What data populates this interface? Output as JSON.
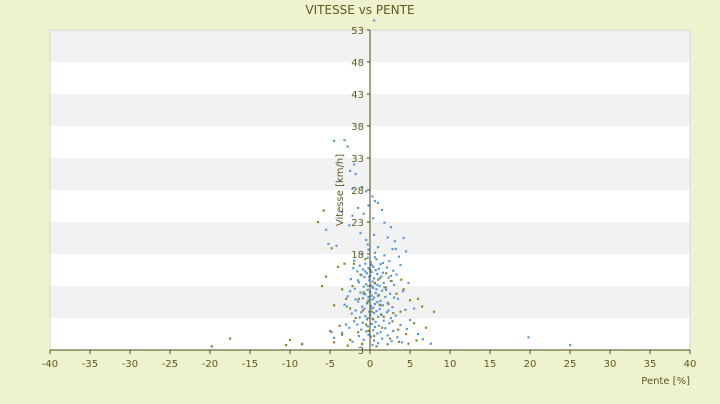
{
  "chart_data": {
    "type": "scatter",
    "title": "VITESSE vs PENTE",
    "xlabel": "Pente [%]",
    "ylabel": "Vitesse [km/h]",
    "xlim": [
      -40,
      40
    ],
    "ylim": [
      3,
      53
    ],
    "x_ticks": [
      -40,
      -35,
      -30,
      -25,
      -20,
      -15,
      -10,
      -5,
      0,
      5,
      10,
      15,
      20,
      25,
      30,
      35,
      40
    ],
    "y_ticks": [
      3,
      8,
      13,
      18,
      23,
      28,
      33,
      38,
      43,
      48,
      53
    ],
    "y_tick_labels": [
      "3",
      "",
      "",
      "18",
      "23",
      "28",
      "33",
      "38",
      "43",
      "48",
      "53"
    ],
    "grid": "horizontal-bands",
    "legend": "none",
    "colors": {
      "background": "#eef2cf",
      "plot_band_light": "#ffffff",
      "plot_band_dark": "#f2f2f2",
      "axis": "#4a4a1a",
      "text": "#5b5b1f",
      "series_1": "#5b9bd5",
      "series_2": "#8a8a2a"
    },
    "series": [
      {
        "color": "#5b9bd5",
        "points": [
          [
            -4.5,
            35.7
          ],
          [
            -3.2,
            35.8
          ],
          [
            -2.8,
            34.8
          ],
          [
            -2.5,
            31.0
          ],
          [
            -1.8,
            30.5
          ],
          [
            -3.8,
            29.5
          ],
          [
            -2.2,
            28.2
          ],
          [
            -0.5,
            27.8
          ],
          [
            0.3,
            27.0
          ],
          [
            0.6,
            26.3
          ],
          [
            -0.2,
            25.6
          ],
          [
            -1.5,
            25.2
          ],
          [
            1.5,
            24.9
          ],
          [
            -0.8,
            24.3
          ],
          [
            -2.2,
            24.0
          ],
          [
            0.4,
            23.6
          ],
          [
            1.8,
            22.9
          ],
          [
            2.6,
            22.2
          ],
          [
            -5.5,
            21.8
          ],
          [
            -1.2,
            21.3
          ],
          [
            0.5,
            21.0
          ],
          [
            2.2,
            20.6
          ],
          [
            -0.5,
            20.2
          ],
          [
            3.1,
            20.0
          ],
          [
            -5.2,
            19.6
          ],
          [
            -4.2,
            19.3
          ],
          [
            1.0,
            19.1
          ],
          [
            2.8,
            18.8
          ],
          [
            -0.2,
            18.7
          ],
          [
            4.5,
            18.4
          ],
          [
            0.6,
            18.2
          ],
          [
            -1.0,
            18.0
          ],
          [
            1.8,
            17.8
          ],
          [
            3.6,
            17.6
          ],
          [
            -0.3,
            17.4
          ],
          [
            0.8,
            17.2
          ],
          [
            -2.0,
            17.0
          ],
          [
            2.4,
            16.9
          ],
          [
            0.1,
            16.7
          ],
          [
            -0.6,
            16.5
          ],
          [
            1.3,
            16.4
          ],
          [
            3.8,
            16.3
          ],
          [
            -1.3,
            16.2
          ],
          [
            0.4,
            16.0
          ],
          [
            2.1,
            15.9
          ],
          [
            -0.2,
            15.8
          ],
          [
            1.1,
            15.7
          ],
          [
            -0.9,
            15.6
          ],
          [
            0.7,
            15.5
          ],
          [
            2.9,
            15.4
          ],
          [
            -1.6,
            15.3
          ],
          [
            0.2,
            15.2
          ],
          [
            1.6,
            15.1
          ],
          [
            -0.4,
            15.0
          ],
          [
            0.9,
            14.9
          ],
          [
            3.3,
            14.8
          ],
          [
            -1.1,
            14.7
          ],
          [
            0.0,
            14.6
          ],
          [
            1.4,
            14.5
          ],
          [
            -0.7,
            14.4
          ],
          [
            2.3,
            14.3
          ],
          [
            0.5,
            14.2
          ],
          [
            -2.4,
            14.1
          ],
          [
            1.0,
            14.0
          ],
          [
            -0.1,
            13.9
          ],
          [
            2.7,
            13.8
          ],
          [
            0.3,
            13.7
          ],
          [
            -1.4,
            13.6
          ],
          [
            1.7,
            13.5
          ],
          [
            0.6,
            13.4
          ],
          [
            -0.5,
            13.3
          ],
          [
            3.0,
            13.2
          ],
          [
            0.1,
            13.1
          ],
          [
            1.2,
            13.0
          ],
          [
            -0.8,
            12.9
          ],
          [
            2.0,
            12.8
          ],
          [
            0.4,
            12.7
          ],
          [
            -1.9,
            12.6
          ],
          [
            0.8,
            12.5
          ],
          [
            -0.3,
            12.4
          ],
          [
            1.5,
            12.3
          ],
          [
            4.1,
            12.2
          ],
          [
            0.0,
            12.1
          ],
          [
            -1.2,
            12.0
          ],
          [
            0.7,
            11.9
          ],
          [
            2.5,
            11.8
          ],
          [
            -0.6,
            11.7
          ],
          [
            1.1,
            11.6
          ],
          [
            0.2,
            11.5
          ],
          [
            -2.8,
            11.4
          ],
          [
            1.9,
            11.3
          ],
          [
            0.5,
            11.2
          ],
          [
            -0.9,
            11.1
          ],
          [
            3.5,
            11.0
          ],
          [
            0.3,
            10.9
          ],
          [
            -0.2,
            10.8
          ],
          [
            1.3,
            10.7
          ],
          [
            -1.5,
            10.6
          ],
          [
            0.9,
            10.5
          ],
          [
            2.2,
            10.4
          ],
          [
            -0.4,
            10.3
          ],
          [
            0.6,
            10.2
          ],
          [
            -3.2,
            10.1
          ],
          [
            1.6,
            10.0
          ],
          [
            0.1,
            9.9
          ],
          [
            -1.0,
            9.8
          ],
          [
            2.8,
            9.7
          ],
          [
            0.4,
            9.6
          ],
          [
            -0.7,
            9.5
          ],
          [
            1.2,
            9.4
          ],
          [
            4.4,
            9.3
          ],
          [
            -1.8,
            9.2
          ],
          [
            0.8,
            9.1
          ],
          [
            -0.1,
            9.0
          ],
          [
            2.1,
            8.9
          ],
          [
            0.5,
            8.8
          ],
          [
            -2.3,
            8.7
          ],
          [
            1.4,
            8.6
          ],
          [
            0.0,
            8.5
          ],
          [
            3.2,
            8.4
          ],
          [
            -0.6,
            8.3
          ],
          [
            1.0,
            8.2
          ],
          [
            -1.3,
            8.1
          ],
          [
            2.6,
            8.0
          ],
          [
            0.3,
            7.9
          ],
          [
            -0.4,
            7.8
          ],
          [
            5.0,
            7.7
          ],
          [
            1.7,
            7.6
          ],
          [
            -2.0,
            7.5
          ],
          [
            0.7,
            7.4
          ],
          [
            -0.9,
            7.3
          ],
          [
            2.4,
            7.2
          ],
          [
            0.2,
            7.1
          ],
          [
            -1.6,
            7.0
          ],
          [
            3.8,
            6.9
          ],
          [
            1.1,
            6.8
          ],
          [
            -0.3,
            6.7
          ],
          [
            0.6,
            6.6
          ],
          [
            -2.6,
            6.5
          ],
          [
            1.9,
            6.4
          ],
          [
            4.6,
            6.3
          ],
          [
            -1.1,
            6.2
          ],
          [
            0.4,
            6.1
          ],
          [
            2.9,
            6.0
          ],
          [
            -0.5,
            5.9
          ],
          [
            1.3,
            5.8
          ],
          [
            -3.5,
            5.7
          ],
          [
            0.9,
            5.6
          ],
          [
            6.0,
            5.5
          ],
          [
            -0.2,
            5.4
          ],
          [
            2.2,
            5.3
          ],
          [
            -1.4,
            5.2
          ],
          [
            0.1,
            5.1
          ],
          [
            3.4,
            5.0
          ],
          [
            -4.5,
            4.9
          ],
          [
            1.5,
            4.8
          ],
          [
            6.6,
            4.7
          ],
          [
            -0.8,
            4.6
          ],
          [
            0.5,
            4.5
          ],
          [
            2.7,
            4.4
          ],
          [
            -2.2,
            4.3
          ],
          [
            4.0,
            4.2
          ],
          [
            1.0,
            4.1
          ],
          [
            7.6,
            4.0
          ],
          [
            -1.0,
            3.9
          ],
          [
            0.3,
            3.8
          ],
          [
            19.8,
            5.0
          ],
          [
            25.0,
            3.8
          ],
          [
            -8.5,
            4.0
          ],
          [
            -4.8,
            5.8
          ],
          [
            -3.0,
            7.0
          ],
          [
            5.5,
            9.5
          ],
          [
            4.8,
            13.5
          ],
          [
            3.2,
            18.8
          ],
          [
            4.2,
            20.5
          ],
          [
            -2.6,
            22.5
          ],
          [
            -3.5,
            24.6
          ],
          [
            1.0,
            26.0
          ],
          [
            -1.0,
            28.5
          ],
          [
            -2.0,
            32.0
          ],
          [
            0.5,
            54.5
          ],
          [
            -0.3,
            19.5
          ],
          [
            0.2,
            16.3
          ],
          [
            -0.1,
            14.4
          ],
          [
            0.3,
            12.9
          ],
          [
            -0.2,
            11.3
          ],
          [
            0.1,
            9.5
          ],
          [
            0.6,
            17.5
          ],
          [
            -0.6,
            15.3
          ],
          [
            0.9,
            13.2
          ],
          [
            -0.8,
            11.8
          ],
          [
            1.2,
            10.1
          ],
          [
            -1.1,
            8.9
          ],
          [
            1.6,
            16.6
          ],
          [
            -1.5,
            13.9
          ],
          [
            2.0,
            12.4
          ],
          [
            -1.8,
            10.9
          ],
          [
            2.3,
            9.2
          ],
          [
            -2.1,
            15.8
          ],
          [
            2.6,
            14.6
          ],
          [
            -2.5,
            12.2
          ],
          [
            3.0,
            11.2
          ],
          [
            -2.9,
            9.8
          ]
        ]
      },
      {
        "color": "#8a8a2a",
        "points": [
          [
            -6.5,
            23.0
          ],
          [
            -5.8,
            24.8
          ],
          [
            -4.8,
            18.9
          ],
          [
            -5.5,
            14.5
          ],
          [
            -4.0,
            16.0
          ],
          [
            -3.5,
            12.5
          ],
          [
            -3.0,
            11.0
          ],
          [
            -2.5,
            9.5
          ],
          [
            -4.5,
            10.0
          ],
          [
            -2.2,
            13.0
          ],
          [
            -1.8,
            8.0
          ],
          [
            -1.2,
            14.8
          ],
          [
            -0.8,
            12.0
          ],
          [
            -0.3,
            10.5
          ],
          [
            0.2,
            9.0
          ],
          [
            0.6,
            13.5
          ],
          [
            1.0,
            11.5
          ],
          [
            1.4,
            8.5
          ],
          [
            1.8,
            12.8
          ],
          [
            2.3,
            10.2
          ],
          [
            2.8,
            7.5
          ],
          [
            3.3,
            11.8
          ],
          [
            3.8,
            9.0
          ],
          [
            4.2,
            12.5
          ],
          [
            5.0,
            10.8
          ],
          [
            6.5,
            9.8
          ],
          [
            8.0,
            9.0
          ],
          [
            7.0,
            6.5
          ],
          [
            5.5,
            7.2
          ],
          [
            4.5,
            5.5
          ],
          [
            3.5,
            6.2
          ],
          [
            2.5,
            4.8
          ],
          [
            1.5,
            6.5
          ],
          [
            0.5,
            5.2
          ],
          [
            -0.5,
            7.0
          ],
          [
            -1.5,
            5.8
          ],
          [
            -2.5,
            4.6
          ],
          [
            -3.5,
            5.4
          ],
          [
            -4.5,
            4.2
          ],
          [
            -5.0,
            6.0
          ],
          [
            -10.0,
            4.6
          ],
          [
            -10.5,
            3.8
          ],
          [
            -17.5,
            4.8
          ],
          [
            -19.8,
            3.6
          ],
          [
            -8.5,
            3.9
          ],
          [
            -2.0,
            16.5
          ],
          [
            0.0,
            15.5
          ],
          [
            1.2,
            14.2
          ],
          [
            2.0,
            15.0
          ],
          [
            -0.6,
            17.2
          ],
          [
            1.7,
            8.2
          ],
          [
            2.9,
            8.8
          ],
          [
            3.6,
            4.3
          ],
          [
            4.8,
            4.0
          ],
          [
            5.8,
            4.5
          ],
          [
            -3.8,
            6.8
          ],
          [
            -1.0,
            4.0
          ],
          [
            0.8,
            3.6
          ],
          [
            2.2,
            3.9
          ],
          [
            -2.8,
            3.7
          ],
          [
            6.0,
            11.0
          ],
          [
            -6.0,
            13.0
          ],
          [
            -3.2,
            16.5
          ],
          [
            -1.4,
            11.0
          ],
          [
            0.4,
            7.8
          ],
          [
            1.3,
            10.0
          ],
          [
            2.6,
            13.8
          ],
          [
            3.9,
            14.0
          ],
          [
            -0.2,
            6.0
          ],
          [
            -0.9,
            9.2
          ]
        ]
      }
    ]
  }
}
